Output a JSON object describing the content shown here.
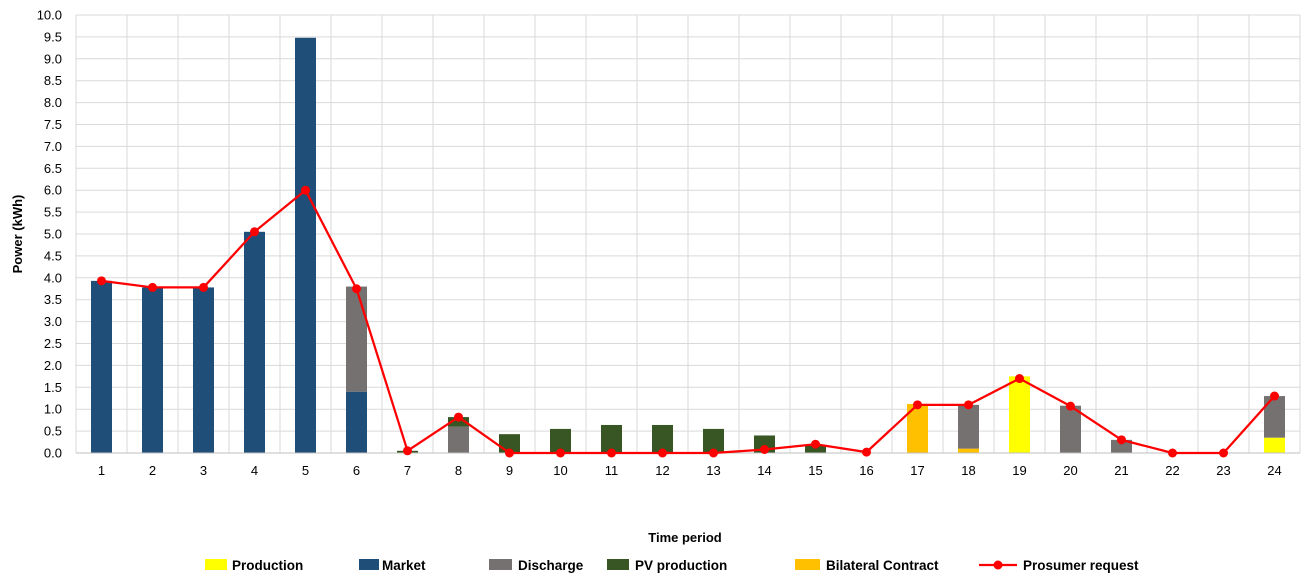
{
  "chart_data": {
    "type": "bar",
    "stacked": true,
    "categories": [
      "1",
      "2",
      "3",
      "4",
      "5",
      "6",
      "7",
      "8",
      "9",
      "10",
      "11",
      "12",
      "13",
      "14",
      "15",
      "16",
      "17",
      "18",
      "19",
      "20",
      "21",
      "22",
      "23",
      "24"
    ],
    "series": [
      {
        "name": "Production",
        "kind": "bar",
        "color": "#FFFF00",
        "values": [
          0,
          0,
          0,
          0,
          0,
          0,
          0,
          0,
          0,
          0,
          0,
          0,
          0,
          0,
          0,
          0,
          0,
          0,
          1.75,
          0,
          0,
          0,
          0,
          0.35
        ]
      },
      {
        "name": "Market",
        "kind": "bar",
        "color": "#1F4E79",
        "values": [
          3.93,
          3.78,
          3.78,
          5.05,
          9.48,
          1.4,
          0,
          0,
          0,
          0,
          0,
          0,
          0,
          0,
          0,
          0,
          0,
          0,
          0,
          0,
          0,
          0,
          0,
          0
        ]
      },
      {
        "name": "Discharge",
        "kind": "bar",
        "color": "#767171",
        "values": [
          0,
          0,
          0,
          0,
          0,
          2.4,
          0,
          0.6,
          0,
          0,
          0,
          0,
          0,
          0,
          0,
          0,
          0,
          1.0,
          0,
          1.08,
          0.3,
          0,
          0,
          0.95
        ]
      },
      {
        "name": "PV production",
        "kind": "bar",
        "color": "#375623",
        "values": [
          0,
          0,
          0,
          0,
          0,
          0,
          0.05,
          0.22,
          0.43,
          0.55,
          0.64,
          0.64,
          0.55,
          0.4,
          0.17,
          0,
          0,
          0,
          0,
          0,
          0,
          0,
          0,
          0
        ]
      },
      {
        "name": "Bilateral Contract",
        "kind": "bar",
        "color": "#FFC000",
        "values": [
          0,
          0,
          0,
          0,
          0,
          0,
          0,
          0,
          0,
          0,
          0,
          0,
          0,
          0,
          0,
          0,
          1.12,
          0.1,
          0,
          0,
          0,
          0,
          0,
          0
        ]
      },
      {
        "name": "Prosumer request",
        "kind": "line",
        "color": "#FF0000",
        "values": [
          3.93,
          3.78,
          3.78,
          5.05,
          6.0,
          3.75,
          0.05,
          0.82,
          0.0,
          0.0,
          0.0,
          0.0,
          0.0,
          0.08,
          0.2,
          0.02,
          1.1,
          1.1,
          1.7,
          1.07,
          0.3,
          0.0,
          0.0,
          1.3
        ]
      }
    ],
    "xlabel": "Time period",
    "ylabel": "Power (kWh)",
    "ylim": [
      0,
      10
    ],
    "yticks": [
      "0.0",
      "0.5",
      "1.0",
      "1.5",
      "2.0",
      "2.5",
      "3.0",
      "3.5",
      "4.0",
      "4.5",
      "5.0",
      "5.5",
      "6.0",
      "6.5",
      "7.0",
      "7.5",
      "8.0",
      "8.5",
      "9.0",
      "9.5",
      "10.0"
    ],
    "grid": true,
    "legend_position": "bottom",
    "legend": [
      "Production",
      "Market",
      "Discharge",
      "PV production",
      "Bilateral Contract",
      "Prosumer request"
    ]
  }
}
